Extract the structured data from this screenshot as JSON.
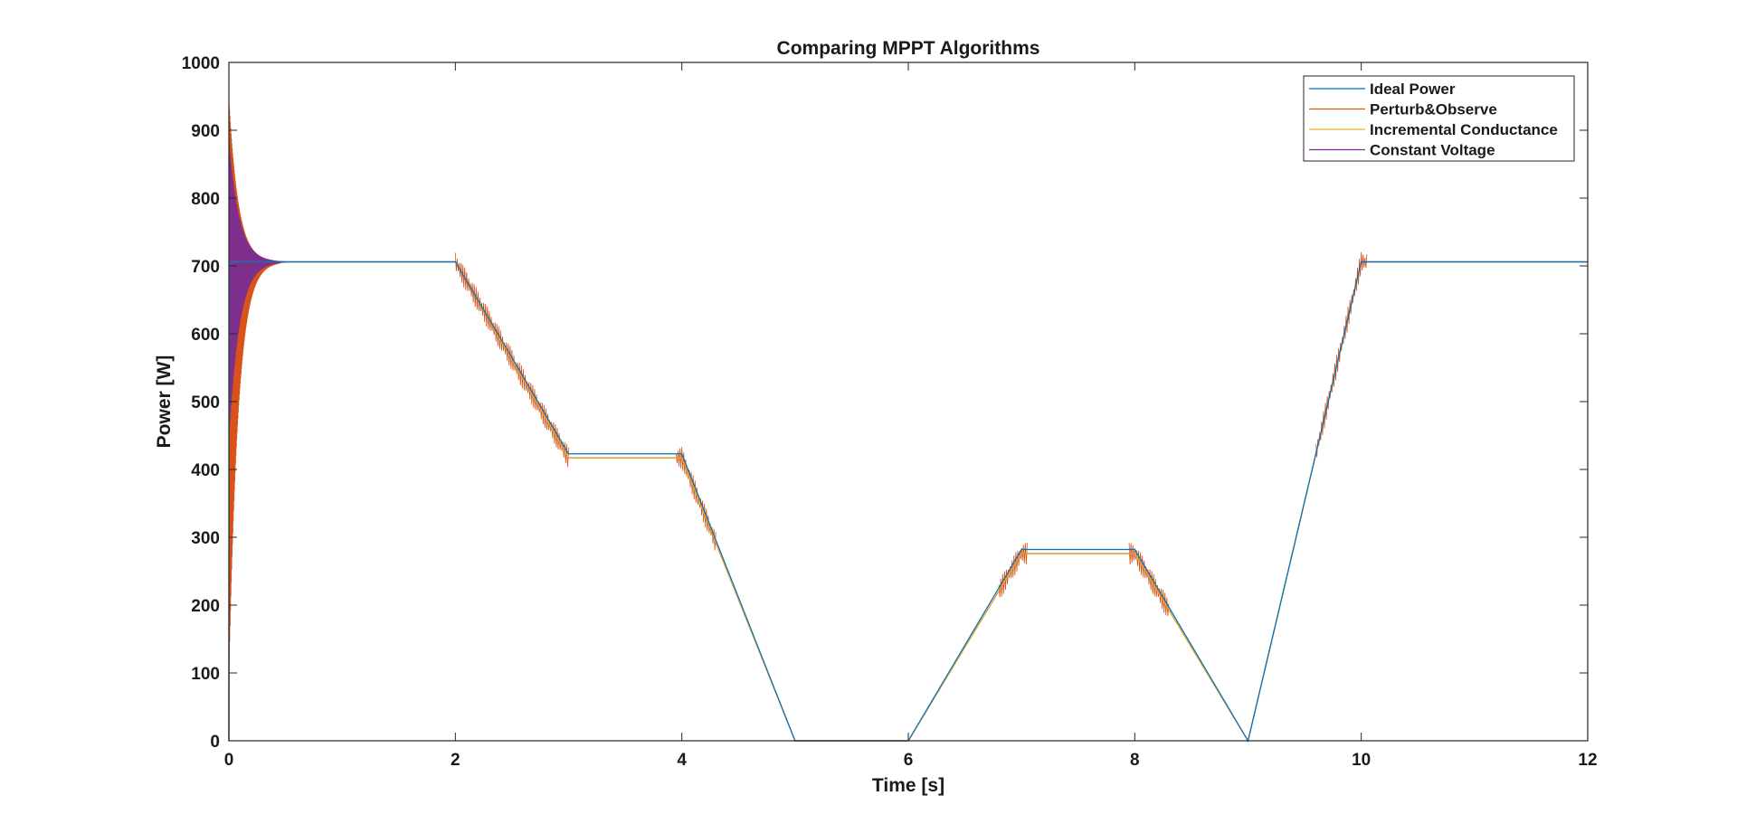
{
  "chart_data": {
    "type": "line",
    "title": "Comparing MPPT Algorithms",
    "xlabel": "Time [s]",
    "ylabel": "Power [W]",
    "xlim": [
      0,
      12
    ],
    "ylim": [
      0,
      1000
    ],
    "xticks": [
      0,
      2,
      4,
      6,
      8,
      10,
      12
    ],
    "yticks": [
      0,
      100,
      200,
      300,
      400,
      500,
      600,
      700,
      800,
      900,
      1000
    ],
    "grid": false,
    "legend_position": "top-right",
    "series": [
      {
        "name": "Ideal Power",
        "color": "#0072BD",
        "points": [
          [
            0,
            0
          ],
          [
            0.002,
            706
          ],
          [
            2,
            706
          ],
          [
            3,
            423
          ],
          [
            4,
            423
          ],
          [
            5,
            0
          ],
          [
            6,
            0
          ],
          [
            7,
            282
          ],
          [
            8,
            282
          ],
          [
            9,
            0
          ],
          [
            10,
            706
          ],
          [
            12,
            706
          ]
        ]
      },
      {
        "name": "Perturb&Observe",
        "color": "#D95319",
        "points": [
          [
            0,
            0
          ],
          [
            0.002,
            706
          ],
          [
            2,
            706
          ],
          [
            3,
            417
          ],
          [
            4,
            417
          ],
          [
            5,
            0
          ],
          [
            6,
            0
          ],
          [
            7,
            276
          ],
          [
            8,
            276
          ],
          [
            9,
            0
          ],
          [
            10,
            706
          ],
          [
            12,
            706
          ]
        ],
        "oscillation": {
          "t_end": 0.45,
          "peak_upper": 940,
          "peak_lower": 110,
          "center": 706
        }
      },
      {
        "name": "Incremental Conductance",
        "color": "#EDB120",
        "points": [
          [
            0,
            0
          ],
          [
            0.002,
            706
          ],
          [
            2,
            706
          ],
          [
            3,
            417
          ],
          [
            4,
            417
          ],
          [
            5,
            0
          ],
          [
            6,
            0
          ],
          [
            7,
            276
          ],
          [
            8,
            276
          ],
          [
            9,
            0
          ],
          [
            10,
            706
          ],
          [
            12,
            706
          ]
        ]
      },
      {
        "name": "Constant Voltage",
        "color": "#7E2F8E",
        "points": [
          [
            0,
            0
          ],
          [
            0.002,
            706
          ],
          [
            2,
            706
          ],
          [
            3,
            417
          ],
          [
            4,
            417
          ],
          [
            5,
            0
          ],
          [
            6,
            0
          ],
          [
            7,
            276
          ],
          [
            8,
            276
          ],
          [
            9,
            0
          ],
          [
            10,
            706
          ],
          [
            12,
            706
          ]
        ],
        "oscillation": {
          "t_end": 0.5,
          "peak_upper": 880,
          "peak_lower": 450,
          "center": 706
        }
      }
    ]
  }
}
